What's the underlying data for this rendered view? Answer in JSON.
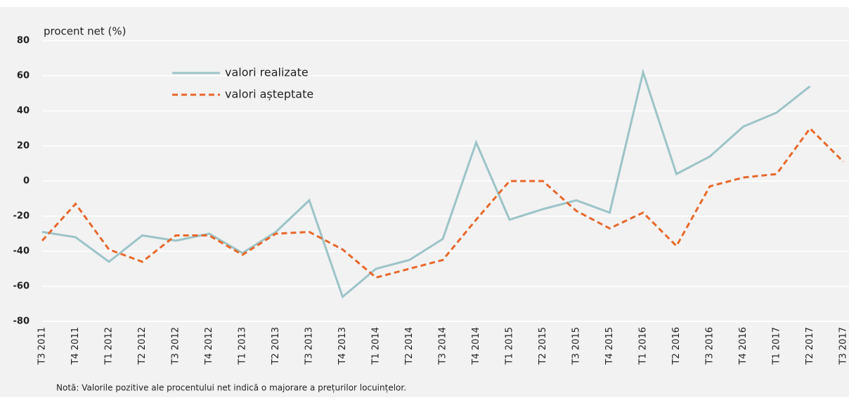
{
  "chart_data": {
    "type": "line",
    "y_label": "procent net (%)",
    "note": "Notă: Valorile pozitive ale procentului net indică o majorare a prețurilor locuințelor.",
    "categories": [
      "T3 2011",
      "T4 2011",
      "T1 2012",
      "T2 2012",
      "T3 2012",
      "T4 2012",
      "T1 2013",
      "T2 2013",
      "T3 2013",
      "T4 2013",
      "T1 2014",
      "T2 2014",
      "T3 2014",
      "T4 2014",
      "T1 2015",
      "T2 2015",
      "T3 2015",
      "T4 2015",
      "T1 2016",
      "T2 2016",
      "T3 2016",
      "T4 2016",
      "T1 2017",
      "T2 2017",
      "T3 2017"
    ],
    "series": [
      {
        "name": "valori realizate",
        "color": "#9cc4c8",
        "linestyle": "solid",
        "values": [
          -29,
          -32,
          -46,
          -31,
          -34,
          -30,
          -41,
          -29,
          -11,
          -66,
          -50,
          -45,
          -33,
          22,
          -22,
          -16,
          -11,
          -18,
          62,
          4,
          14,
          31,
          39,
          54,
          null
        ]
      },
      {
        "name": "valori așteptate",
        "color": "#e8672a",
        "linestyle": "dashed",
        "values": [
          -34,
          -13,
          -39,
          -46,
          -31,
          -31,
          -42,
          -30,
          -29,
          -39,
          -55,
          -50,
          -45,
          -22,
          0,
          0,
          -17,
          -27,
          -18,
          -37,
          -3,
          2,
          4,
          30,
          11
        ]
      }
    ],
    "ylim": [
      -80,
      80
    ],
    "yticks": [
      -80,
      -60,
      -40,
      -20,
      0,
      20,
      40,
      60,
      80
    ],
    "grid": true,
    "legend": "upper left"
  }
}
